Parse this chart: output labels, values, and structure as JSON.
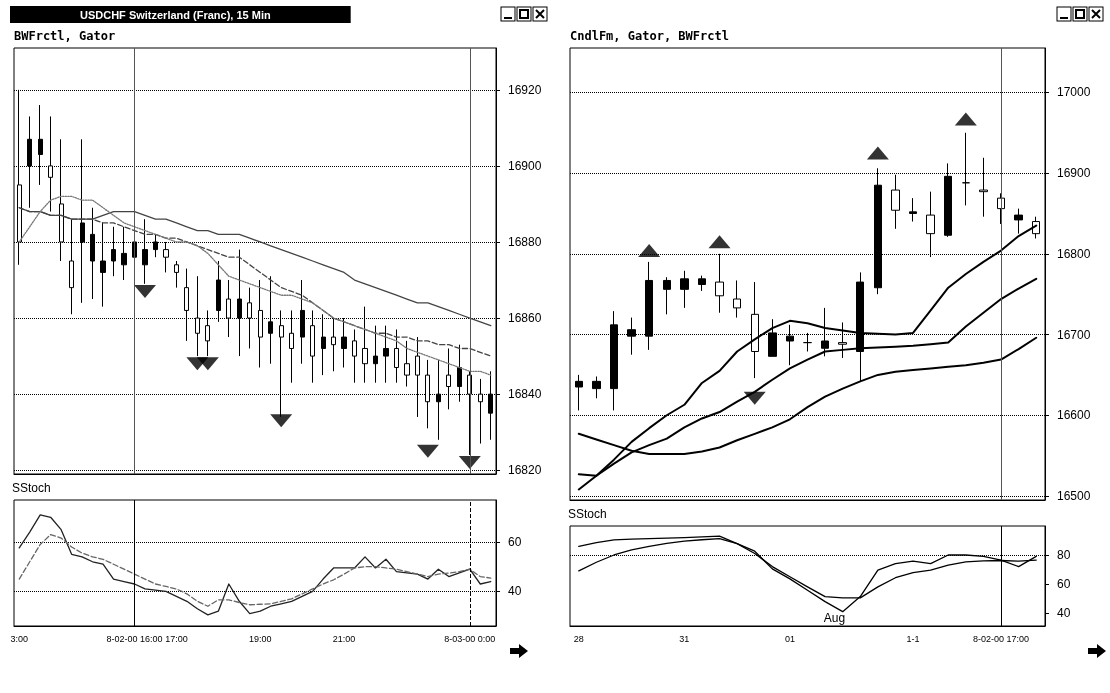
{
  "chart_data": [
    {
      "type": "candlestick",
      "title": "USDCHF Switzerland (Franc), 15 Min",
      "subtitle": "BWFrctl, Gator",
      "color": "#000000",
      "categories": [
        "3:00",
        null,
        null,
        null,
        null,
        null,
        null,
        null,
        null,
        null,
        null,
        "8-02-00 16:00",
        null,
        null,
        null,
        "17:00",
        null,
        null,
        null,
        null,
        null,
        null,
        null,
        "19:00",
        null,
        null,
        null,
        null,
        null,
        null,
        null,
        "21:00",
        null,
        null,
        null,
        null,
        null,
        null,
        null,
        null,
        null,
        null,
        null,
        "8-03-00 0:00",
        null,
        null
      ],
      "ohlc": [
        [
          16895,
          16920,
          16874,
          16880
        ],
        [
          16900,
          16913,
          16889,
          16907
        ],
        [
          16903,
          16916,
          16895,
          16907
        ],
        [
          16900,
          16913,
          16888,
          16897
        ],
        [
          16890,
          16907,
          16875,
          16880
        ],
        [
          16875,
          16886,
          16861,
          16868
        ],
        [
          16880,
          16907,
          16864,
          16885
        ],
        [
          16875,
          16889,
          16865,
          16882
        ],
        [
          16872,
          16885,
          16863,
          16875
        ],
        [
          16875,
          16884,
          16871,
          16878
        ],
        [
          16874,
          16884,
          16870,
          16877
        ],
        [
          16876,
          16885,
          16870,
          16880
        ],
        [
          16874,
          16886,
          16869,
          16878
        ],
        [
          16878,
          16882,
          16876,
          16880
        ],
        [
          16878,
          16880,
          16872,
          16876
        ],
        [
          16874,
          16875,
          16868,
          16872
        ],
        [
          16868,
          16873,
          16854,
          16862
        ],
        [
          16860,
          16871,
          16850,
          16856
        ],
        [
          16858,
          16862,
          16850,
          16854
        ],
        [
          16862,
          16875,
          16859,
          16870
        ],
        [
          16865,
          16870,
          16855,
          16860
        ],
        [
          16860,
          16878,
          16850,
          16865
        ],
        [
          16864,
          16868,
          16852,
          16860
        ],
        [
          16862,
          16870,
          16847,
          16855
        ],
        [
          16856,
          16871,
          16848,
          16859
        ],
        [
          16858,
          16862,
          16834,
          16855
        ],
        [
          16856,
          16862,
          16843,
          16852
        ],
        [
          16855,
          16870,
          16848,
          16862
        ],
        [
          16858,
          16862,
          16843,
          16850
        ],
        [
          16852,
          16861,
          16845,
          16855
        ],
        [
          16855,
          16860,
          16846,
          16853
        ],
        [
          16852,
          16860,
          16847,
          16855
        ],
        [
          16854,
          16857,
          16843,
          16850
        ],
        [
          16852,
          16863,
          16843,
          16848
        ],
        [
          16848,
          16858,
          16843,
          16850
        ],
        [
          16850,
          16858,
          16843,
          16852
        ],
        [
          16852,
          16857,
          16843,
          16847
        ],
        [
          16848,
          16854,
          16842,
          16845
        ],
        [
          16850,
          16855,
          16834,
          16845
        ],
        [
          16845,
          16849,
          16831,
          16838
        ],
        [
          16838,
          16849,
          16828,
          16840
        ],
        [
          16845,
          16852,
          16836,
          16842
        ],
        [
          16842,
          16853,
          16838,
          16847
        ],
        [
          16845,
          16846,
          16824,
          16840
        ],
        [
          16840,
          16844,
          16827,
          16838
        ],
        [
          16835,
          16846,
          16828,
          16840
        ]
      ],
      "series": [
        {
          "type": "line",
          "color": "#444444",
          "line_style": "solid",
          "values": [
            16889,
            16888,
            16888,
            16887,
            16887,
            16886,
            16886,
            16886,
            16887,
            16888,
            16888,
            16888,
            16887,
            16886,
            16886,
            16885,
            16884,
            16883,
            16883,
            16882,
            16882,
            16882,
            16881,
            16880,
            16879,
            16878,
            16877,
            16876,
            16875,
            16874,
            16873,
            16872,
            16870,
            16869,
            16868,
            16867,
            16866,
            16865,
            16864,
            16864,
            16863,
            16862,
            16861,
            16860,
            16859,
            16858
          ]
        },
        {
          "type": "line",
          "color": "#444444",
          "line_style": "dashed",
          "values": [
            16889,
            16888,
            16888,
            16887,
            16887,
            16886,
            16886,
            16886,
            16885,
            16885,
            16884,
            16883,
            16882,
            16882,
            16881,
            16881,
            16880,
            16879,
            16878,
            16877,
            16876,
            16876,
            16874,
            16872,
            16870,
            16868,
            16867,
            16866,
            16864,
            16862,
            16860,
            16859,
            16858,
            16857,
            16856,
            16856,
            16855,
            16855,
            16854,
            16854,
            16853,
            16853,
            16852,
            16852,
            16851,
            16850
          ]
        },
        {
          "type": "line",
          "color": "#777777",
          "line_style": "dotted",
          "values": [
            16880,
            16884,
            16888,
            16891,
            16892,
            16892,
            16891,
            16891,
            16889,
            16887,
            16885,
            16884,
            16883,
            16882,
            16881,
            16880,
            16880,
            16879,
            16877,
            16874,
            16871,
            16870,
            16869,
            16868,
            16867,
            16866,
            16866,
            16865,
            16864,
            16862,
            16860,
            16859,
            16858,
            16857,
            16856,
            16855,
            16854,
            16852,
            16851,
            16850,
            16849,
            16848,
            16847,
            16846,
            16846,
            16845
          ]
        },
        {
          "type": "scatter",
          "color": "#000000",
          "marker": "triangle",
          "values": [
            null,
            null,
            null,
            null,
            null,
            null,
            null,
            null,
            null,
            null,
            null,
            null,
            16867,
            null,
            null,
            null,
            null,
            16848,
            16848,
            null,
            null,
            null,
            null,
            null,
            null,
            16833,
            null,
            null,
            null,
            null,
            null,
            null,
            null,
            null,
            null,
            null,
            null,
            null,
            null,
            16825,
            null,
            null,
            null,
            16822,
            null,
            null
          ]
        }
      ],
      "ylim": [
        16819,
        16931
      ],
      "yticks": [
        16820,
        16840,
        16860,
        16880,
        16900,
        16920
      ],
      "grid": "y",
      "tick_labels": "y",
      "ref_lines": [
        {
          "axis": "x",
          "value": "8-02-00 16:00",
          "color": "#555555",
          "line_style": "solid"
        },
        {
          "axis": "x",
          "value": "8-03-00 0:00",
          "color": "#555555",
          "line_style": "solid"
        }
      ]
    },
    {
      "type": "line",
      "title": "SStoch",
      "categories": [
        "3:00",
        null,
        null,
        null,
        null,
        null,
        null,
        null,
        null,
        null,
        null,
        "8-02-00 16:00",
        null,
        null,
        null,
        "17:00",
        null,
        null,
        null,
        null,
        null,
        null,
        null,
        "19:00",
        null,
        null,
        null,
        null,
        null,
        null,
        null,
        "21:00",
        null,
        null,
        null,
        null,
        null,
        null,
        null,
        null,
        null,
        null,
        null,
        "8-03-00 0:00",
        null,
        null
      ],
      "series": [
        {
          "color": "#222222",
          "line_style": "solid",
          "values": [
            57.6,
            64,
            71,
            70,
            65,
            55,
            54,
            52,
            51,
            45,
            44,
            43,
            41,
            40.5,
            40,
            38,
            36,
            33,
            30.5,
            32,
            43,
            36,
            31,
            32,
            34,
            35,
            36,
            38,
            40,
            45,
            49.5,
            49.5,
            49.5,
            54,
            49.5,
            53,
            48,
            47.5,
            47,
            45,
            49,
            46,
            47.5,
            49,
            43,
            44
          ]
        },
        {
          "color": "#666666",
          "line_style": "dashed",
          "values": [
            45,
            52,
            59,
            63,
            61.6,
            58,
            55.5,
            54,
            53,
            51,
            49,
            47,
            45,
            43,
            42,
            41,
            39,
            36,
            34,
            36.6,
            36.6,
            35.5,
            34.6,
            34.8,
            35,
            36,
            37,
            39,
            41,
            43,
            44.7,
            47,
            49.5,
            50,
            50,
            49.5,
            49,
            48,
            47,
            46,
            47,
            47.4,
            48,
            49,
            46,
            45.4
          ]
        }
      ],
      "ylim": [
        26,
        77
      ],
      "yticks": [
        40,
        60
      ],
      "grid": "y",
      "ref_lines": [
        {
          "axis": "x",
          "value": "8-02-00 16:00",
          "color": "#000000",
          "line_style": "solid"
        },
        {
          "axis": "x",
          "value": "8-03-00 0:00",
          "color": "#000000",
          "line_style": "dashed"
        }
      ]
    },
    {
      "type": "candlestick",
      "subtitle": "CndlFm, Gator, BWFrctl",
      "color": "#000000",
      "categories": [
        "28",
        null,
        null,
        null,
        null,
        null,
        "31",
        null,
        null,
        null,
        null,
        null,
        "01",
        null,
        null,
        null,
        null,
        null,
        null,
        "1-1",
        null,
        null,
        null,
        null,
        "8-02-00 17:00",
        null,
        null
      ],
      "ohlc": [
        [
          16635,
          16650,
          16606,
          16642
        ],
        [
          16633,
          16648,
          16621,
          16642
        ],
        [
          16633,
          16729,
          16606,
          16712
        ],
        [
          16698,
          16721,
          16675,
          16706
        ],
        [
          16698,
          16790,
          16681,
          16767
        ],
        [
          16756,
          16771,
          16725,
          16767
        ],
        [
          16756,
          16779,
          16733,
          16769
        ],
        [
          16762,
          16773,
          16754,
          16769
        ],
        [
          16765,
          16800,
          16727,
          16748
        ],
        [
          16744,
          16767,
          16721,
          16733
        ],
        [
          16725,
          16765,
          16646,
          16679
        ],
        [
          16673,
          16719,
          16673,
          16702
        ],
        [
          16692,
          16712,
          16662,
          16698
        ],
        [
          16690,
          16702,
          16679,
          16690
        ],
        [
          16683,
          16733,
          16673,
          16692
        ],
        [
          16690,
          16715,
          16671,
          16688
        ],
        [
          16679,
          16777,
          16642,
          16765
        ],
        [
          16758,
          16906,
          16750,
          16885
        ],
        [
          16879,
          16898,
          16831,
          16854
        ],
        [
          16850,
          16869,
          16840,
          16852
        ],
        [
          16848,
          16877,
          16796,
          16825
        ],
        [
          16823,
          16912,
          16821,
          16896
        ],
        [
          16888,
          16950,
          16860,
          16888
        ],
        [
          16879,
          16919,
          16846,
          16877
        ],
        [
          16869,
          16875,
          16837,
          16856
        ],
        [
          16842,
          16856,
          16825,
          16848
        ],
        [
          16840,
          16846,
          16819,
          16825
        ]
      ],
      "series": [
        {
          "type": "line",
          "color": "#000000",
          "line_style": "solid",
          "values": [
            16527,
            16525,
            16545,
            16567,
            16584,
            16600,
            16613,
            16640,
            16655,
            16679,
            16694,
            16708,
            16717,
            16714,
            16708,
            16705,
            16702,
            16701,
            16700,
            16702,
            16730,
            16758,
            16775,
            16790,
            16804,
            16822,
            16835
          ]
        },
        {
          "type": "line",
          "color": "#000000",
          "line_style": "solid",
          "values": [
            16508,
            16525,
            16540,
            16554,
            16563,
            16571,
            16585,
            16596,
            16604,
            16617,
            16629,
            16644,
            16658,
            16669,
            16679,
            16681,
            16683,
            16684,
            16685,
            16686,
            16688,
            16690,
            16710,
            16727,
            16744,
            16757,
            16769
          ]
        },
        {
          "type": "line",
          "color": "#000000",
          "line_style": "solid",
          "values": [
            16577,
            16570,
            16563,
            16556,
            16552,
            16552,
            16552,
            16555,
            16560,
            16569,
            16577,
            16585,
            16595,
            16610,
            16623,
            16633,
            16642,
            16650,
            16654,
            16656,
            16658,
            16660,
            16662,
            16665,
            16669,
            16682,
            16696
          ]
        },
        {
          "type": "scatter",
          "color": "#000000",
          "marker": "triangle",
          "values": [
            null,
            null,
            null,
            null,
            16804,
            null,
            null,
            null,
            16815,
            null,
            16621,
            null,
            null,
            null,
            null,
            null,
            null,
            16925,
            null,
            null,
            null,
            null,
            16967,
            null,
            null,
            null,
            null
          ]
        }
      ],
      "ylim": [
        16495,
        17055
      ],
      "yticks": [
        16500,
        16600,
        16700,
        16800,
        16900,
        17000
      ],
      "grid": "y",
      "tick_labels": "y",
      "ref_lines": [
        {
          "axis": "x",
          "value": "8-02-00 17:00",
          "color": "#555555",
          "line_style": "solid"
        }
      ]
    },
    {
      "type": "line",
      "title": "SStoch",
      "categories": [
        "28",
        null,
        null,
        null,
        null,
        null,
        "31",
        null,
        null,
        null,
        null,
        null,
        "01",
        null,
        null,
        null,
        null,
        null,
        null,
        "1-1",
        null,
        null,
        null,
        null,
        "8-02-00 17:00",
        null,
        null
      ],
      "series": [
        {
          "color": "#000000",
          "line_style": "solid",
          "values": [
            86,
            88.5,
            90.4,
            91,
            91.3,
            91.6,
            92,
            92.5,
            93,
            87.8,
            82.6,
            70.4,
            63.5,
            55.7,
            47.8,
            40.9,
            51.3,
            69.6,
            74,
            75.7,
            74,
            80,
            80,
            79,
            76.5,
            72,
            79
          ]
        },
        {
          "color": "#000000",
          "line_style": "solid",
          "values": [
            69,
            75,
            80,
            83.5,
            86,
            88,
            89.6,
            90.5,
            91.3,
            87.8,
            81,
            72,
            65,
            58,
            51.3,
            50.4,
            50.4,
            58,
            64.3,
            67.8,
            69.6,
            73,
            75.3,
            76,
            76.2,
            75.7,
            76.5
          ]
        }
      ],
      "ylim": [
        31,
        100
      ],
      "yticks": [
        40,
        60,
        80
      ],
      "annotations": [
        "Aug"
      ],
      "ref_lines": [
        {
          "axis": "y",
          "value": 80,
          "color": "#000000",
          "line_style": "dotted"
        },
        {
          "axis": "x",
          "value": "8-02-00 17:00",
          "color": "#000000",
          "line_style": "solid"
        }
      ]
    }
  ]
}
